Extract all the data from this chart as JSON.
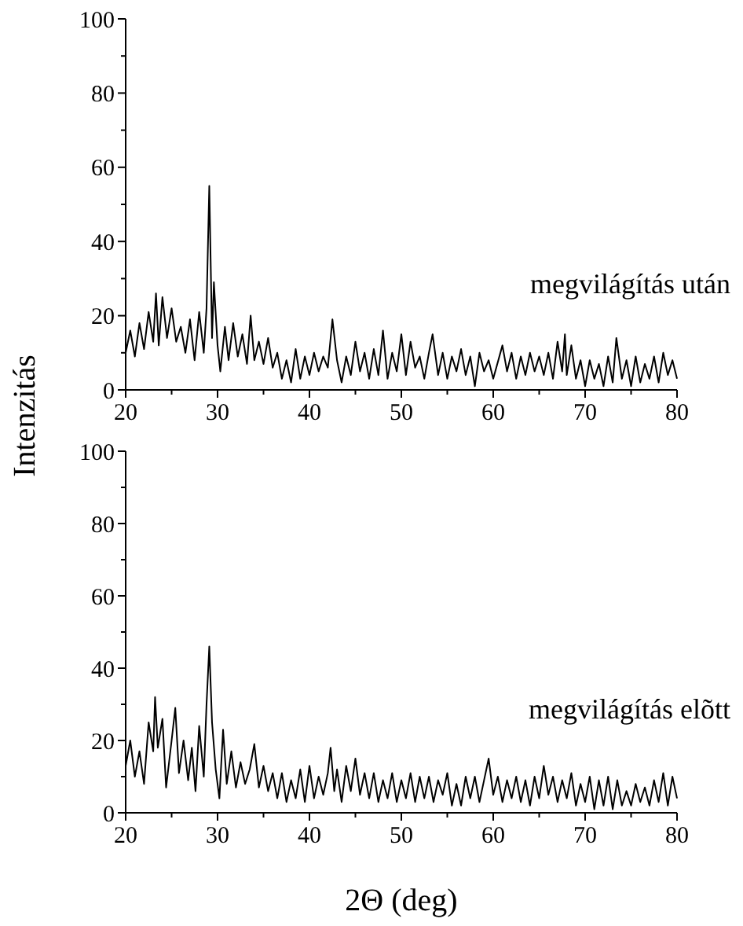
{
  "chart_data": [
    {
      "type": "line",
      "ylabel": "Intenzitás",
      "annotations": [
        "megvilágítás után"
      ],
      "color": "#000000",
      "xlim": [
        20,
        80
      ],
      "ylim": [
        0,
        100
      ],
      "xticks": [
        20,
        {
          "value": 25,
          "label": null
        },
        30,
        {
          "value": 35,
          "label": null
        },
        40,
        {
          "value": 45,
          "label": null
        },
        50,
        {
          "value": 55,
          "label": null
        },
        60,
        {
          "value": 65,
          "label": null
        },
        70,
        {
          "value": 75,
          "label": null
        },
        80
      ],
      "yticks": [
        0,
        {
          "value": 10,
          "label": null
        },
        20,
        {
          "value": 30,
          "label": null
        },
        40,
        {
          "value": 50,
          "label": null
        },
        60,
        {
          "value": 70,
          "label": null
        },
        80,
        {
          "value": 90,
          "label": null
        },
        100
      ],
      "x": [
        20,
        20.5,
        21,
        21.5,
        22,
        22.5,
        23,
        23.3,
        23.6,
        24,
        24.5,
        25,
        25.5,
        26,
        26.5,
        27,
        27.5,
        28,
        28.5,
        28.8,
        29.1,
        29.4,
        29.6,
        30,
        30.3,
        30.8,
        31.2,
        31.7,
        32.2,
        32.7,
        33.2,
        33.6,
        34,
        34.5,
        35,
        35.5,
        36,
        36.5,
        37,
        37.5,
        38,
        38.5,
        39,
        39.5,
        40,
        40.5,
        41,
        41.5,
        42,
        42.5,
        43,
        43.5,
        44,
        44.5,
        45,
        45.5,
        46,
        46.5,
        47,
        47.5,
        48,
        48.5,
        49,
        49.5,
        50,
        50.5,
        51,
        51.5,
        52,
        52.5,
        53,
        53.4,
        54,
        54.5,
        55,
        55.5,
        56,
        56.5,
        57,
        57.5,
        58,
        58.5,
        59,
        59.5,
        60,
        61,
        61.5,
        62,
        62.5,
        63,
        63.5,
        64,
        64.5,
        65,
        65.5,
        66,
        66.5,
        67,
        67.5,
        67.8,
        68,
        68.5,
        69,
        69.5,
        70,
        70.5,
        71,
        71.5,
        72,
        72.5,
        73,
        73.4,
        74,
        74.5,
        75,
        75.5,
        76,
        76.5,
        77,
        77.5,
        78,
        78.5,
        79,
        79.5,
        80
      ],
      "values": [
        10,
        16,
        9,
        18,
        11,
        21,
        13,
        26,
        12,
        25,
        14,
        22,
        13,
        17,
        10,
        19,
        8,
        21,
        10,
        22,
        55,
        14,
        29,
        12,
        5,
        17,
        8,
        18,
        9,
        15,
        7,
        20,
        8,
        13,
        7,
        14,
        6,
        10,
        3,
        8,
        2,
        11,
        3,
        9,
        4,
        10,
        5,
        9,
        6,
        19,
        8,
        2,
        9,
        4,
        13,
        5,
        10,
        3,
        11,
        4,
        16,
        3,
        10,
        5,
        15,
        4,
        13,
        6,
        9,
        3,
        10,
        15,
        4,
        10,
        3,
        9,
        5,
        11,
        4,
        9,
        1,
        10,
        5,
        8,
        3,
        12,
        5,
        10,
        3,
        9,
        4,
        10,
        5,
        9,
        4,
        10,
        3,
        13,
        5,
        15,
        4,
        12,
        3,
        8,
        1,
        8,
        3,
        7,
        1,
        9,
        2,
        14,
        3,
        8,
        1,
        9,
        2,
        7,
        3,
        9,
        2,
        10,
        4,
        8,
        3
      ]
    },
    {
      "type": "line",
      "xlabel": "2Θ (deg)",
      "annotations": [
        "megvilágítás elõtt"
      ],
      "color": "#000000",
      "xlim": [
        20,
        80
      ],
      "ylim": [
        0,
        100
      ],
      "xticks": [
        20,
        {
          "value": 25,
          "label": null
        },
        30,
        {
          "value": 35,
          "label": null
        },
        40,
        {
          "value": 45,
          "label": null
        },
        50,
        {
          "value": 55,
          "label": null
        },
        60,
        {
          "value": 65,
          "label": null
        },
        70,
        {
          "value": 75,
          "label": null
        },
        80
      ],
      "yticks": [
        0,
        {
          "value": 10,
          "label": null
        },
        20,
        {
          "value": 30,
          "label": null
        },
        40,
        {
          "value": 50,
          "label": null
        },
        60,
        {
          "value": 70,
          "label": null
        },
        80,
        {
          "value": 90,
          "label": null
        },
        100
      ],
      "x": [
        20,
        20.5,
        21,
        21.5,
        22,
        22.5,
        23,
        23.2,
        23.5,
        24,
        24.4,
        25,
        25.4,
        25.8,
        26.3,
        26.8,
        27.2,
        27.6,
        28,
        28.5,
        28.8,
        29.1,
        29.4,
        29.8,
        30.2,
        30.6,
        31,
        31.5,
        32,
        32.5,
        33,
        33.5,
        34,
        34.5,
        35,
        35.5,
        36,
        36.5,
        37,
        37.5,
        38,
        38.5,
        39,
        39.5,
        40,
        40.5,
        41,
        41.5,
        42,
        42.3,
        42.7,
        43,
        43.5,
        44,
        44.5,
        45,
        45.5,
        46,
        46.5,
        47,
        47.5,
        48,
        48.5,
        49,
        49.5,
        50,
        50.5,
        51,
        51.5,
        52,
        52.5,
        53,
        53.5,
        54,
        54.5,
        55,
        55.5,
        56,
        56.5,
        57,
        57.5,
        58,
        58.5,
        59,
        59.5,
        60,
        60.5,
        61,
        61.5,
        62,
        62.5,
        63,
        63.5,
        64,
        64.5,
        65,
        65.5,
        66,
        66.5,
        67,
        67.5,
        68,
        68.5,
        69,
        69.5,
        70,
        70.5,
        71,
        71.5,
        72,
        72.5,
        73,
        73.5,
        74,
        74.5,
        75,
        75.5,
        76,
        76.5,
        77,
        77.5,
        78,
        78.5,
        79,
        79.5,
        80
      ],
      "values": [
        13,
        20,
        10,
        17,
        8,
        25,
        17,
        32,
        18,
        26,
        7,
        20,
        29,
        11,
        20,
        9,
        18,
        6,
        24,
        10,
        30,
        46,
        25,
        12,
        4,
        23,
        8,
        17,
        7,
        14,
        8,
        12,
        19,
        7,
        13,
        6,
        11,
        4,
        11,
        3,
        9,
        4,
        12,
        3,
        13,
        4,
        10,
        5,
        11,
        18,
        6,
        12,
        3,
        13,
        6,
        15,
        5,
        11,
        4,
        11,
        3,
        9,
        4,
        11,
        3,
        9,
        4,
        11,
        3,
        10,
        4,
        10,
        3,
        9,
        5,
        11,
        2,
        8,
        2,
        10,
        4,
        10,
        3,
        9,
        15,
        5,
        10,
        3,
        9,
        4,
        10,
        3,
        9,
        2,
        10,
        4,
        13,
        5,
        10,
        3,
        9,
        4,
        11,
        2,
        8,
        3,
        10,
        1,
        9,
        2,
        10,
        1,
        9,
        2,
        6,
        2,
        8,
        3,
        7,
        2,
        9,
        3,
        11,
        2,
        10,
        4
      ]
    }
  ]
}
